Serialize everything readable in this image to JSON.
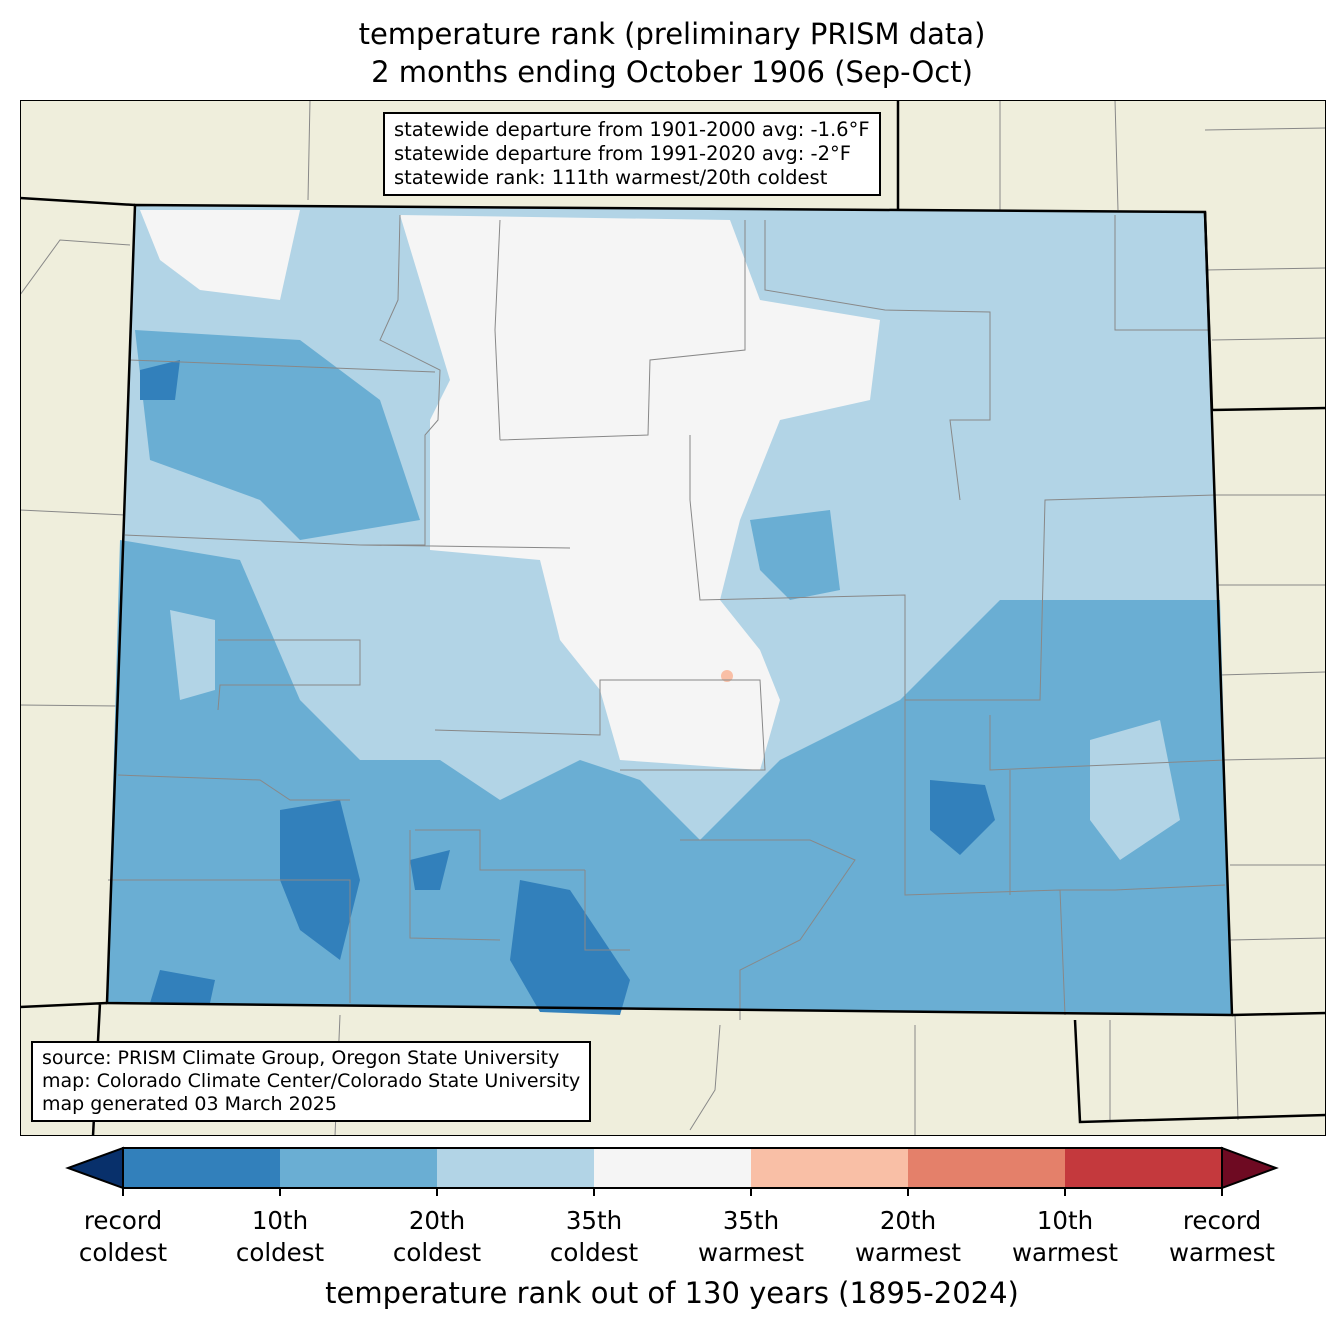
{
  "title": {
    "line1": "temperature rank (preliminary PRISM data)",
    "line2": "2 months ending October 1906 (Sep-Oct)"
  },
  "stats": [
    "statewide departure from 1901-2000 avg: -1.6°F",
    "statewide departure from 1991-2020 avg: -2°F",
    "statewide rank: 111th warmest/20th coldest"
  ],
  "source": [
    "source: PRISM Climate Group, Oregon State University",
    "map: Colorado Climate Center/Colorado State University",
    "map generated 03 March 2025"
  ],
  "colorbar": {
    "colors": [
      "#08306b",
      "#3280bb",
      "#6aaed3",
      "#b2d4e6",
      "#f5f5f5",
      "#f9bfa6",
      "#e4806a",
      "#c4393d",
      "#6e0a22"
    ],
    "ticks": [
      {
        "l1": "record",
        "l2": "coldest"
      },
      {
        "l1": "10th",
        "l2": "coldest"
      },
      {
        "l1": "20th",
        "l2": "coldest"
      },
      {
        "l1": "35th",
        "l2": "coldest"
      },
      {
        "l1": "35th",
        "l2": "warmest"
      },
      {
        "l1": "20th",
        "l2": "warmest"
      },
      {
        "l1": "10th",
        "l2": "warmest"
      },
      {
        "l1": "record",
        "l2": "warmest"
      }
    ],
    "label": "temperature rank out of 130 years (1895-2024)"
  }
}
